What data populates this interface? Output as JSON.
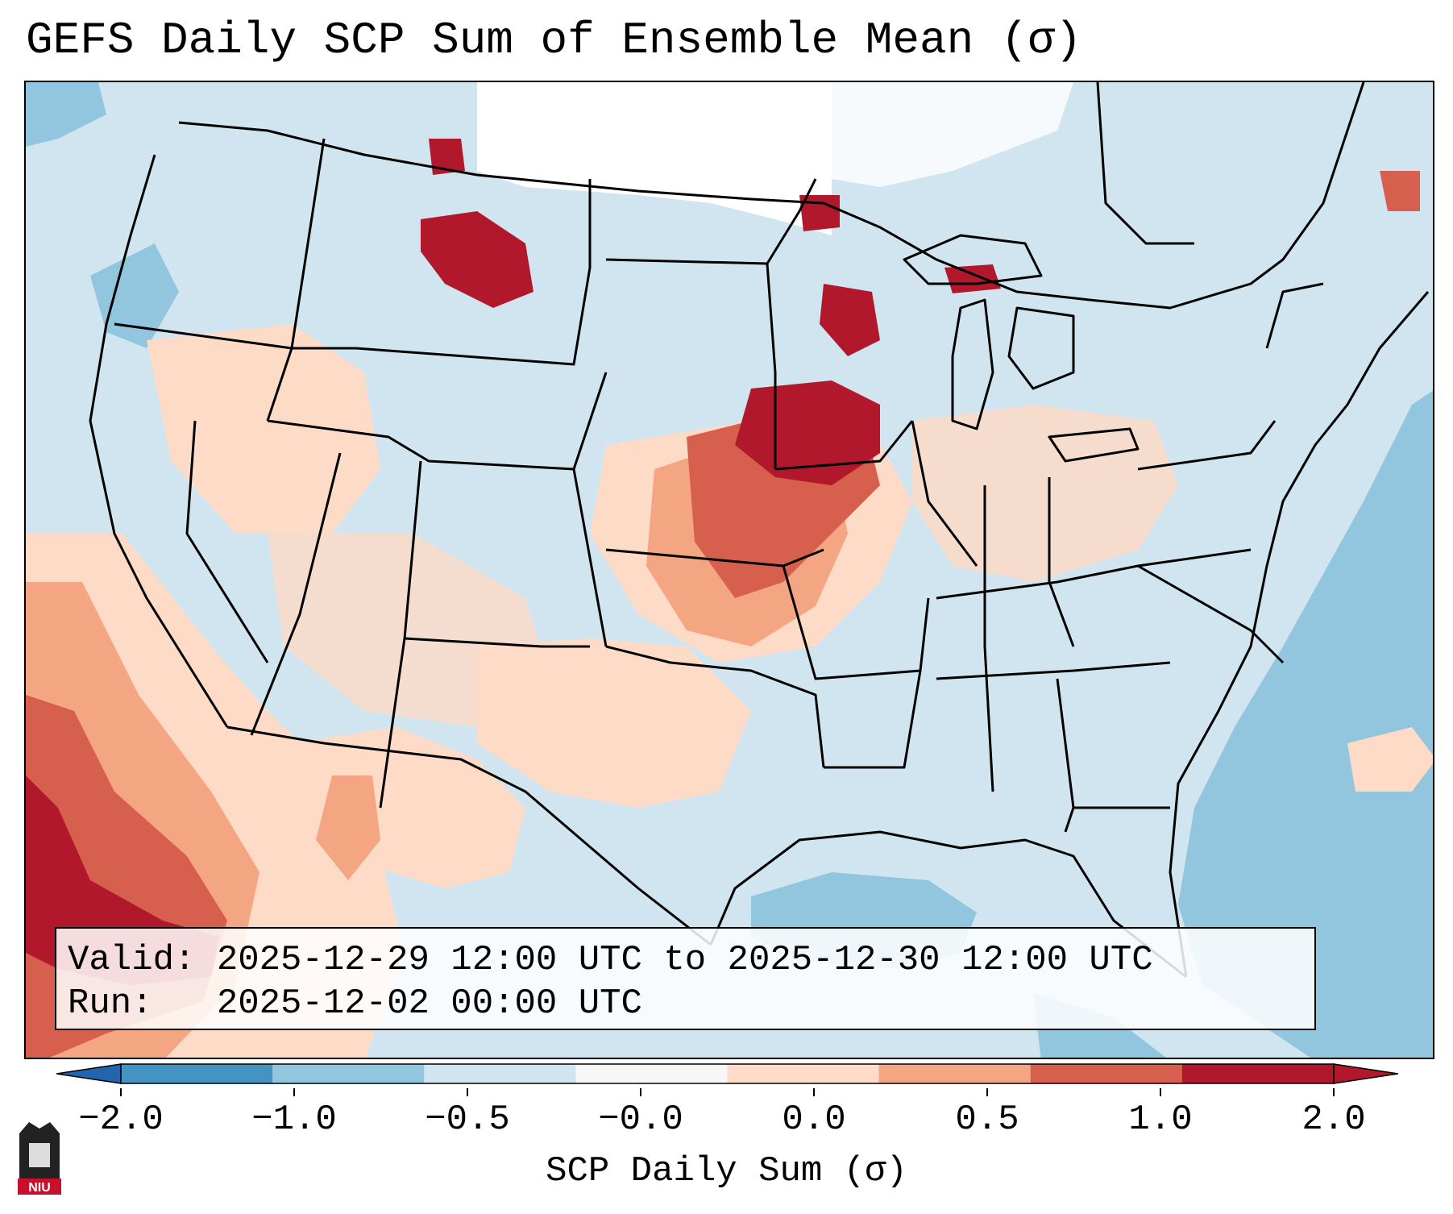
{
  "title": "GEFS Daily SCP Sum of Ensemble Mean (σ)",
  "info": {
    "valid_label": "Valid:",
    "valid_value": "2025-12-29 12:00 UTC to 2025-12-30 12:00 UTC",
    "run_label": "Run:",
    "run_value": "2025-12-02 00:00 UTC"
  },
  "colorbar": {
    "label": "SCP Daily Sum (σ)",
    "ticks": [
      "−2.0",
      "−1.0",
      "−0.5",
      "−0.0",
      "0.0",
      "0.5",
      "1.0",
      "2.0"
    ],
    "colors": [
      "#4393c3",
      "#92c5de",
      "#d1e5f0",
      "#f7f7f7",
      "#fddbc7",
      "#f4a582",
      "#d6604d",
      "#b2182b"
    ],
    "under_color": "#2166ac",
    "over_color": "#b2182b"
  },
  "map_colors": {
    "background": "#d1e5f0",
    "neutral": "#ffffff",
    "light_pos": "#fddbc7",
    "mid_pos": "#f4a582",
    "strong_pos": "#d6604d",
    "max_pos": "#b2182b",
    "light_neg": "#92c5de",
    "mid_neg": "#4393c3"
  },
  "logo": {
    "text": "NIU"
  }
}
